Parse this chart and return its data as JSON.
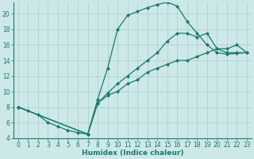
{
  "xlabel": "Humidex (Indice chaleur)",
  "bg_color": "#cce8e8",
  "grid_color": "#aacccc",
  "line_color": "#1a7a6e",
  "xlim": [
    -0.5,
    23.5
  ],
  "ylim": [
    4,
    21.5
  ],
  "xticks": [
    0,
    1,
    2,
    3,
    4,
    5,
    6,
    7,
    8,
    9,
    10,
    11,
    12,
    13,
    14,
    15,
    16,
    17,
    18,
    19,
    20,
    21,
    22,
    23
  ],
  "yticks": [
    4,
    6,
    8,
    10,
    12,
    14,
    16,
    18,
    20
  ],
  "line1_x": [
    0,
    1,
    2,
    3,
    4,
    5,
    6,
    7,
    8,
    9,
    10,
    11,
    12,
    13,
    14,
    15,
    16,
    17,
    18,
    19,
    20,
    21,
    22,
    23
  ],
  "line1_y": [
    8,
    7.5,
    7,
    6,
    5.5,
    5,
    4.7,
    4.5,
    9,
    13,
    18,
    19.8,
    20.3,
    20.8,
    21.2,
    21.5,
    21,
    19,
    17.5,
    16,
    15,
    14.8,
    14.9,
    15
  ],
  "line2_x": [
    0,
    7,
    8,
    9,
    10,
    11,
    12,
    13,
    14,
    15,
    16,
    17,
    18,
    19,
    20,
    21,
    22,
    23
  ],
  "line2_y": [
    8,
    4.5,
    8.5,
    9.8,
    11,
    12,
    13,
    14,
    15,
    16.5,
    17.5,
    17.5,
    17,
    17.5,
    15.5,
    15,
    15,
    15
  ],
  "line3_x": [
    0,
    7,
    8,
    9,
    10,
    11,
    12,
    13,
    14,
    15,
    16,
    17,
    18,
    19,
    20,
    21,
    22,
    23
  ],
  "line3_y": [
    8,
    4.5,
    8.5,
    9.5,
    10,
    11,
    11.5,
    12.5,
    13,
    13.5,
    14,
    14,
    14.5,
    15,
    15.5,
    15.5,
    16,
    15
  ],
  "markersize": 2.5,
  "tick_fontsize": 5.5,
  "xlabel_fontsize": 6.5,
  "linewidth": 0.9
}
